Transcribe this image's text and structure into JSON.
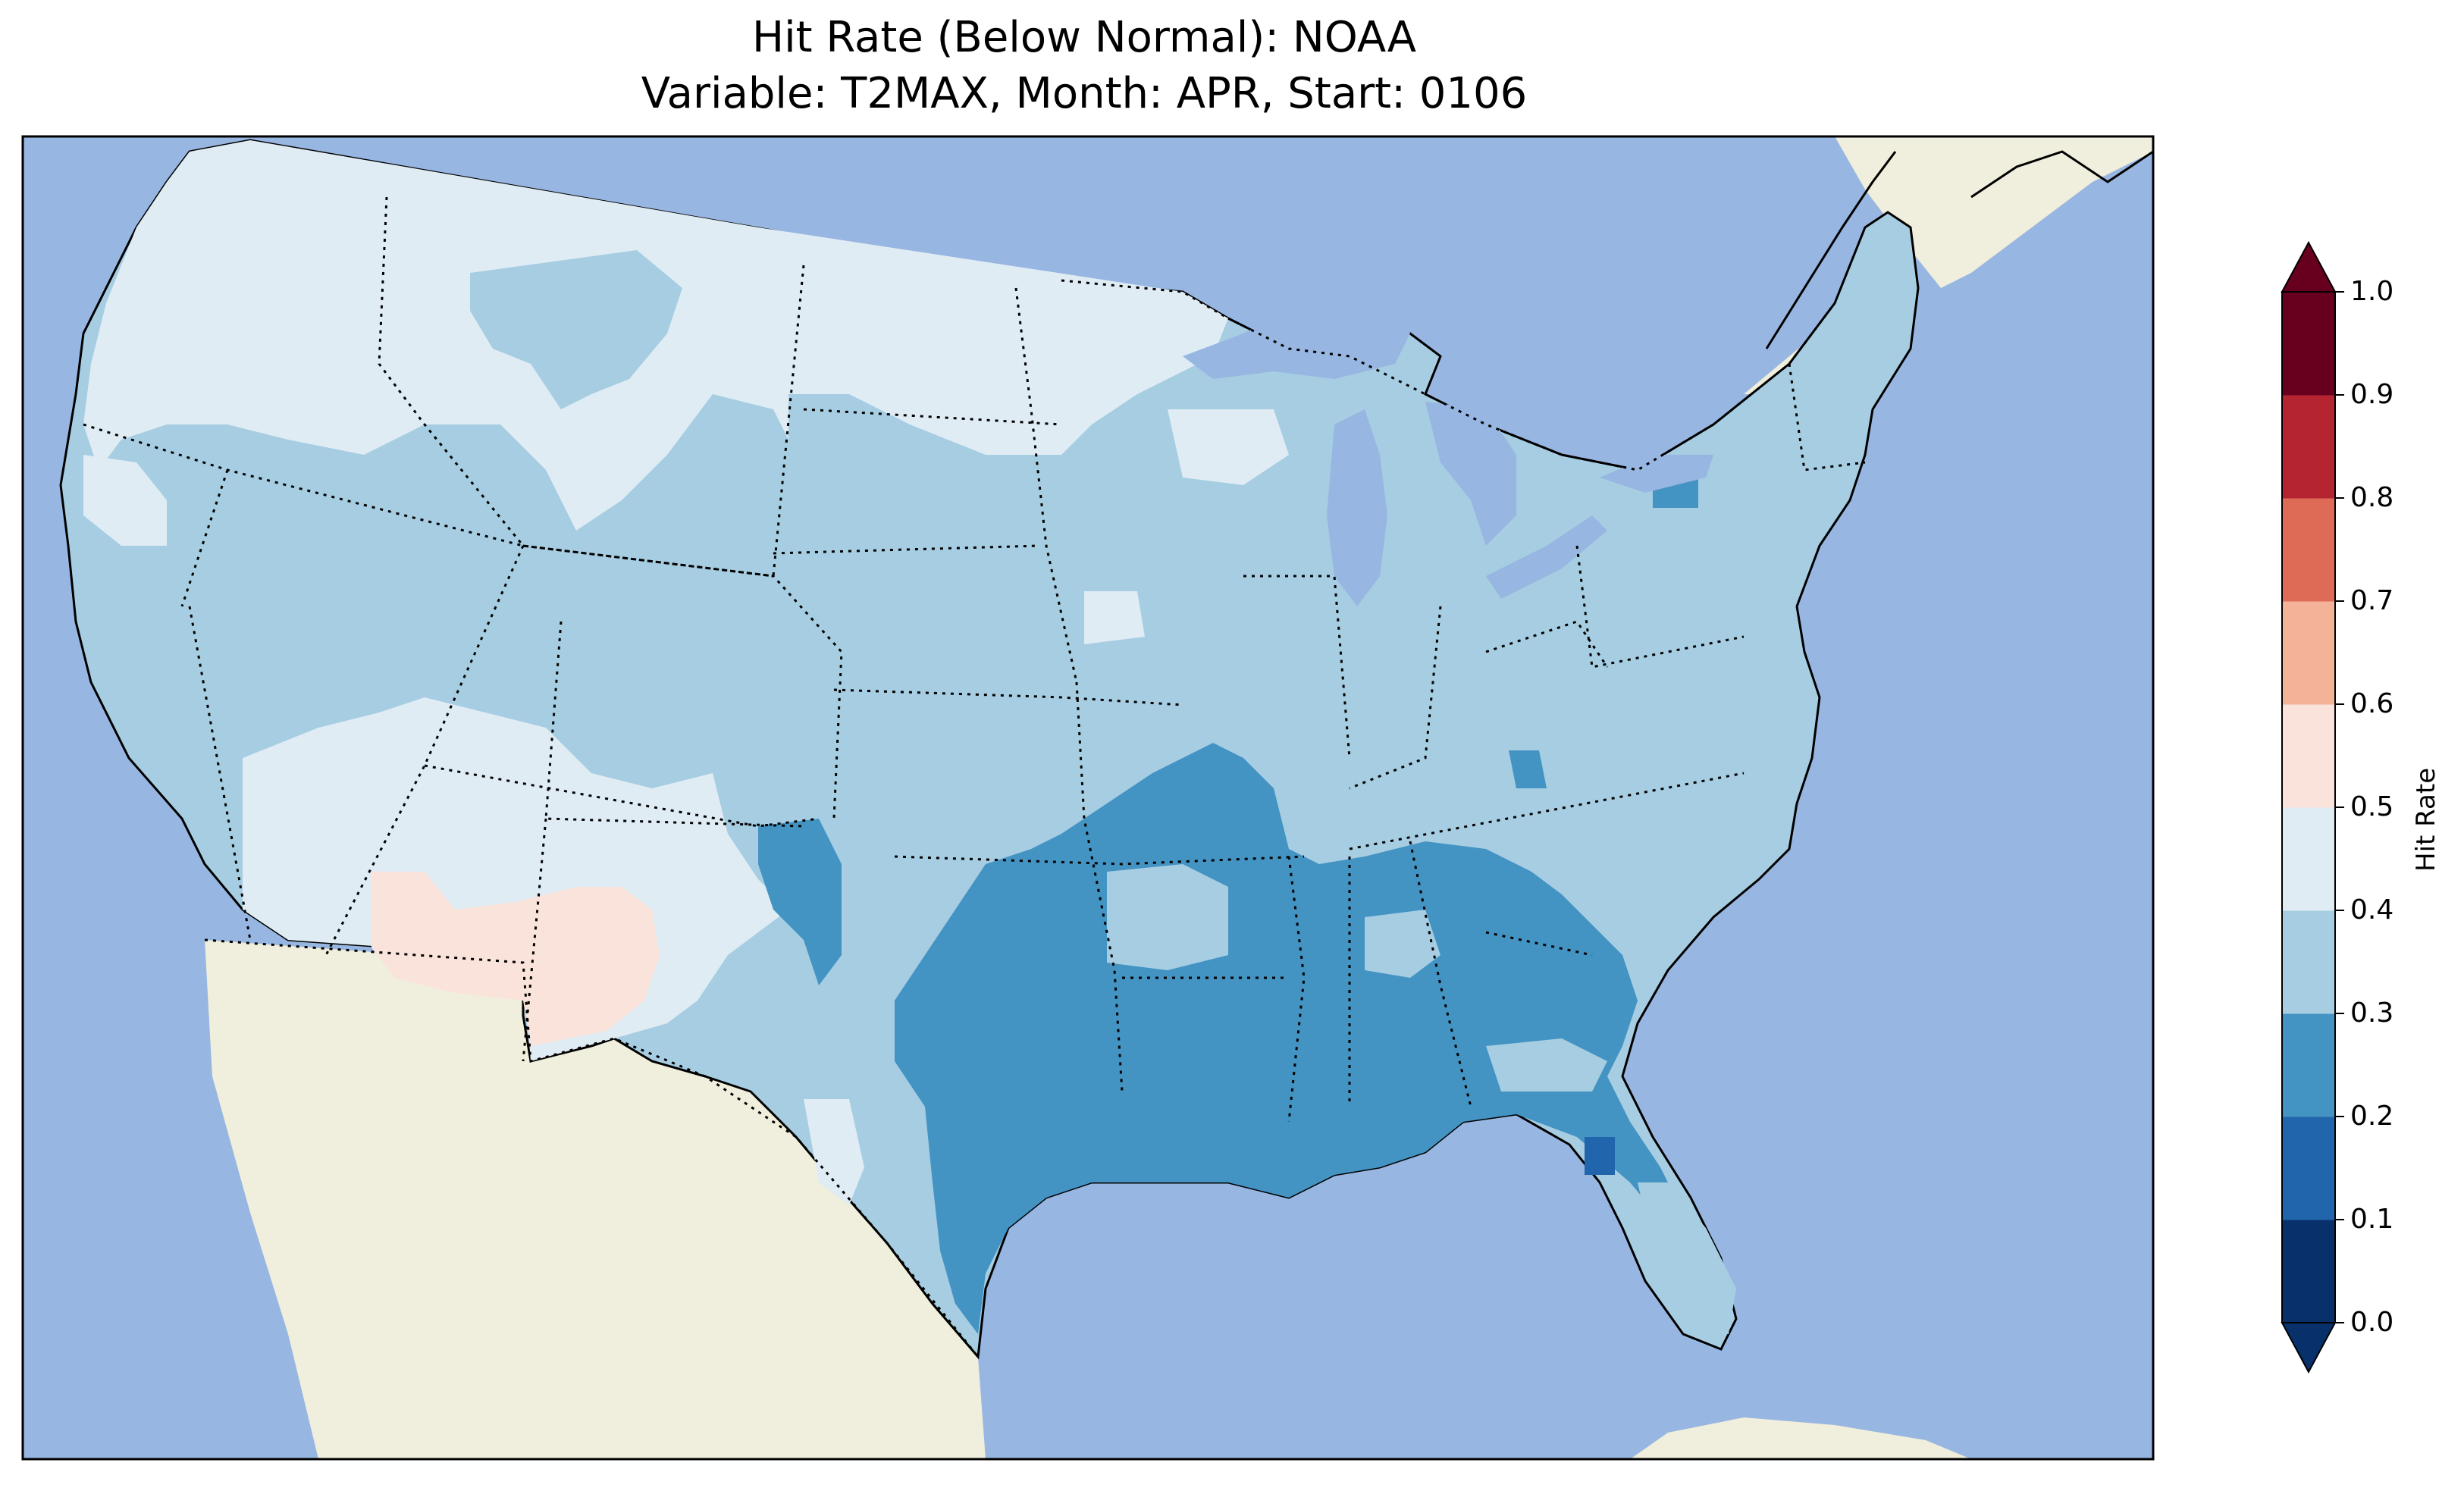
{
  "title": {
    "line1": "Hit Rate (Below Normal): NOAA",
    "line2": "Variable: T2MAX, Month: APR, Start: 0106"
  },
  "colorbar": {
    "label": "Hit Rate",
    "ticks": [
      "0.0",
      "0.1",
      "0.2",
      "0.3",
      "0.4",
      "0.5",
      "0.6",
      "0.7",
      "0.8",
      "0.9",
      "1.0"
    ],
    "bins": [
      {
        "range": [
          0.0,
          0.1
        ],
        "color": "#08306b"
      },
      {
        "range": [
          0.1,
          0.2
        ],
        "color": "#2166ac"
      },
      {
        "range": [
          0.2,
          0.3
        ],
        "color": "#4393c3"
      },
      {
        "range": [
          0.3,
          0.4
        ],
        "color": "#a6cde2"
      },
      {
        "range": [
          0.4,
          0.5
        ],
        "color": "#e0ecf4"
      },
      {
        "range": [
          0.5,
          0.6
        ],
        "color": "#f9e3da"
      },
      {
        "range": [
          0.6,
          0.7
        ],
        "color": "#f4b398"
      },
      {
        "range": [
          0.7,
          0.8
        ],
        "color": "#de6b55"
      },
      {
        "range": [
          0.8,
          0.9
        ],
        "color": "#b42431"
      },
      {
        "range": [
          0.9,
          1.0
        ],
        "color": "#67001f"
      }
    ],
    "extend": "both"
  },
  "map": {
    "region": "Contiguous United States",
    "ocean_color": "#97b6e1",
    "land_color": "#f0eedc",
    "state_borders": "dotted",
    "dominant_values": {
      "west": "0.3-0.5",
      "southwest": "0.5-0.6",
      "southern_plains_southeast": "0.2-0.3",
      "florida_spot": "0.1-0.2"
    }
  }
}
